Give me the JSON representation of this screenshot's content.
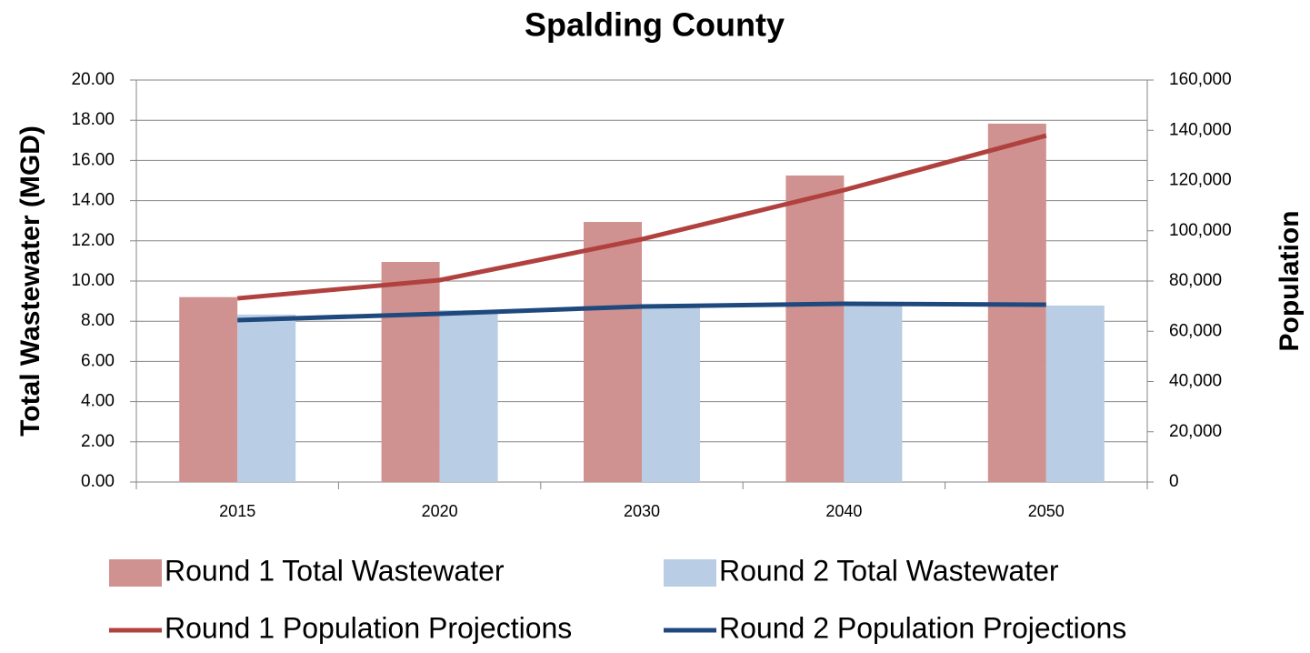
{
  "chart_data": {
    "type": "bar",
    "title": "Spalding County",
    "ylabel": "Total Wastewater (MGD)",
    "y2label": "Population",
    "categories": [
      "2015",
      "2020",
      "2030",
      "2040",
      "2050"
    ],
    "ylim": [
      0,
      20
    ],
    "yticks": [
      {
        "value": 0,
        "label": "0.00"
      },
      {
        "value": 2,
        "label": "2.00"
      },
      {
        "value": 4,
        "label": "4.00"
      },
      {
        "value": 6,
        "label": "6.00"
      },
      {
        "value": 8,
        "label": "8.00"
      },
      {
        "value": 10,
        "label": "10.00"
      },
      {
        "value": 12,
        "label": "12.00"
      },
      {
        "value": 14,
        "label": "14.00"
      },
      {
        "value": 16,
        "label": "16.00"
      },
      {
        "value": 18,
        "label": "18.00"
      },
      {
        "value": 20,
        "label": "20.00"
      }
    ],
    "y2lim": [
      0,
      160000
    ],
    "y2ticks": [
      0,
      {
        "value": 20000,
        "label": "20,000"
      },
      {
        "value": 40000,
        "label": "40,000"
      },
      {
        "value": 60000,
        "label": "60,000"
      },
      {
        "value": 80000,
        "label": "80,000"
      },
      {
        "value": 100000,
        "label": "100,000"
      },
      {
        "value": 120000,
        "label": "120,000"
      },
      {
        "value": 140000,
        "label": "140,000"
      },
      {
        "value": 160000,
        "label": "160,000"
      }
    ],
    "grid": true,
    "series": [
      {
        "name": "Round 1 Total Wastewater",
        "type": "bar",
        "color": "#d09290",
        "values": [
          9.2,
          10.95,
          12.94,
          15.25,
          17.83
        ]
      },
      {
        "name": "Round 2 Total Wastewater",
        "type": "bar",
        "color": "#b9cde5",
        "values": [
          8.33,
          8.55,
          8.78,
          8.78,
          8.78
        ]
      },
      {
        "name": "Round 1 Population Projections",
        "type": "line",
        "axis": "y2",
        "color": "#b0413e",
        "values": [
          73100,
          80360,
          96650,
          116200,
          137900
        ]
      },
      {
        "name": "Round 2 Population Projections",
        "type": "line",
        "axis": "y2",
        "color": "#1f497d",
        "values": [
          64440,
          66970,
          69870,
          70950,
          70590
        ]
      }
    ]
  }
}
